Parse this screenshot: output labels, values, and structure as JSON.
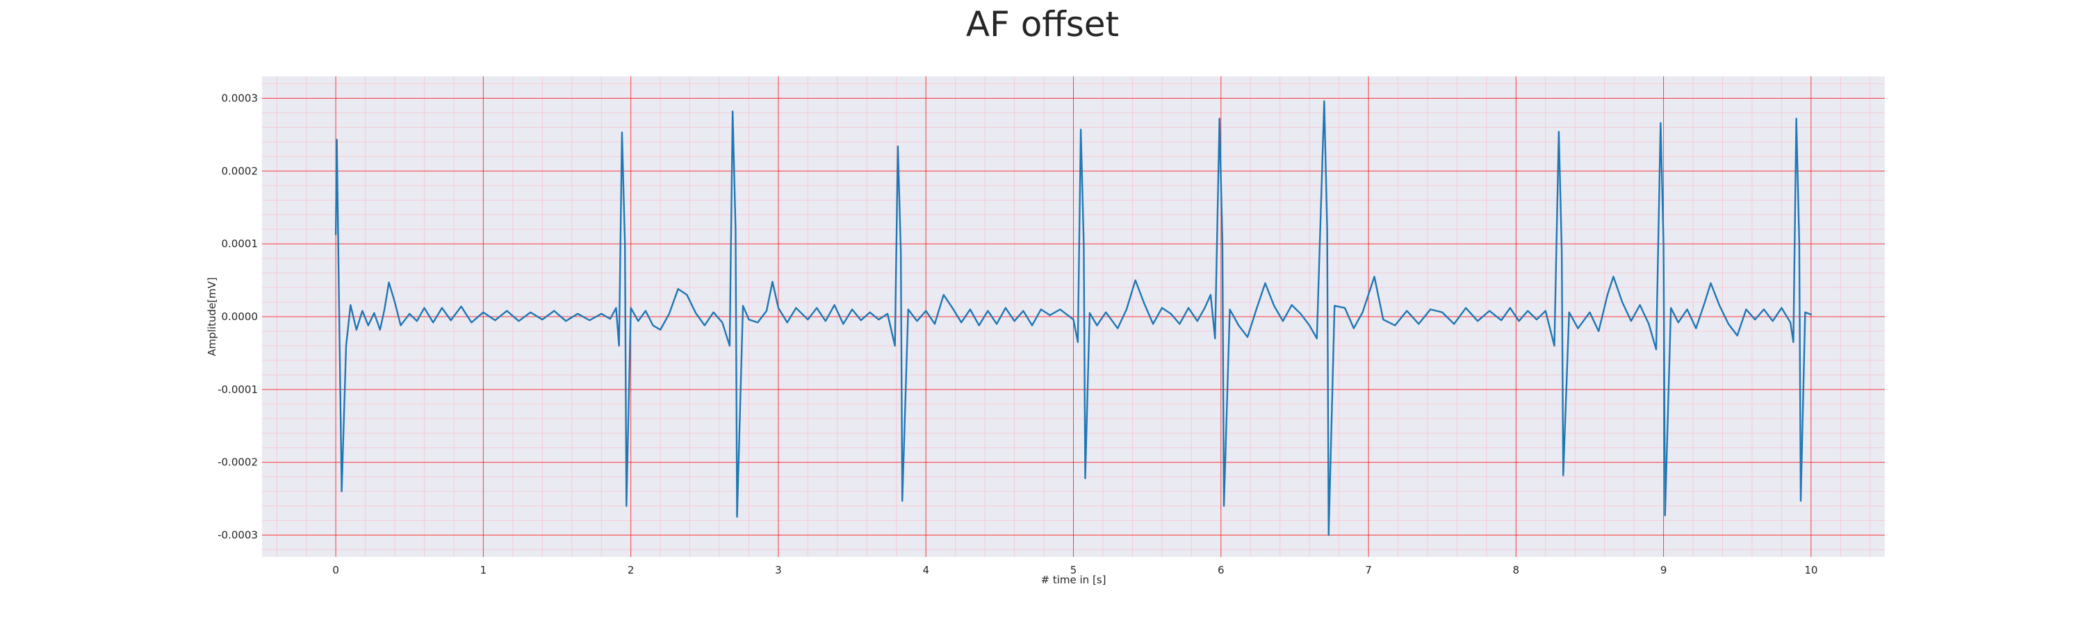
{
  "chart_data": {
    "type": "line",
    "title": "AF offset",
    "xlabel": "# time in [s]",
    "ylabel": "Amplitude[mV]",
    "xlim": [
      -0.5,
      10.5
    ],
    "ylim": [
      -0.00033,
      0.00033
    ],
    "xticks": [
      0,
      1,
      2,
      3,
      4,
      5,
      6,
      7,
      8,
      9,
      10
    ],
    "xtick_labels": [
      "0",
      "1",
      "2",
      "3",
      "4",
      "5",
      "6",
      "7",
      "8",
      "9",
      "10"
    ],
    "yticks": [
      0.0003,
      0.0002,
      0.0001,
      0.0,
      -0.0001,
      -0.0002,
      -0.0003
    ],
    "ytick_labels": [
      "0.0003",
      "0.0002",
      "0.0001",
      "0.0000",
      "-0.0001",
      "-0.0002",
      "-0.0003"
    ],
    "grid": true,
    "colors": {
      "line": "#1f77b4",
      "plot_background": "#eaeaf2",
      "major_grid": "#ff0000",
      "minor_grid": "#ffb6c1"
    },
    "series": [
      {
        "points": [
          [
            0.0,
            0.000113
          ],
          [
            0.007,
            0.000243
          ],
          [
            0.02,
            5e-05
          ],
          [
            0.04,
            -0.00024
          ],
          [
            0.07,
            -4e-05
          ],
          [
            0.1,
            1.6e-05
          ],
          [
            0.14,
            -1.8e-05
          ],
          [
            0.18,
            8e-06
          ],
          [
            0.22,
            -1.2e-05
          ],
          [
            0.26,
            5e-06
          ],
          [
            0.3,
            -1.8e-05
          ],
          [
            0.33,
            1e-05
          ],
          [
            0.36,
            4.7e-05
          ],
          [
            0.4,
            2e-05
          ],
          [
            0.44,
            -1.2e-05
          ],
          [
            0.5,
            4e-06
          ],
          [
            0.55,
            -6e-06
          ],
          [
            0.6,
            1.2e-05
          ],
          [
            0.66,
            -8e-06
          ],
          [
            0.72,
            1.2e-05
          ],
          [
            0.78,
            -5e-06
          ],
          [
            0.85,
            1.4e-05
          ],
          [
            0.92,
            -8e-06
          ],
          [
            1.0,
            6e-06
          ],
          [
            1.08,
            -5e-06
          ],
          [
            1.16,
            8e-06
          ],
          [
            1.24,
            -6e-06
          ],
          [
            1.32,
            6e-06
          ],
          [
            1.4,
            -4e-06
          ],
          [
            1.48,
            8e-06
          ],
          [
            1.56,
            -6e-06
          ],
          [
            1.64,
            4e-06
          ],
          [
            1.72,
            -5e-06
          ],
          [
            1.8,
            4e-06
          ],
          [
            1.86,
            -3e-06
          ],
          [
            1.9,
            1.2e-05
          ],
          [
            1.92,
            -4e-05
          ],
          [
            1.94,
            0.000253
          ],
          [
            1.96,
            0.0001
          ],
          [
            1.97,
            -0.00026
          ],
          [
            2.0,
            1.2e-05
          ],
          [
            2.05,
            -6e-06
          ],
          [
            2.1,
            8e-06
          ],
          [
            2.15,
            -1.2e-05
          ],
          [
            2.2,
            -1.8e-05
          ],
          [
            2.26,
            4e-06
          ],
          [
            2.32,
            3.8e-05
          ],
          [
            2.38,
            3e-05
          ],
          [
            2.44,
            5e-06
          ],
          [
            2.5,
            -1.2e-05
          ],
          [
            2.56,
            6e-06
          ],
          [
            2.62,
            -8e-06
          ],
          [
            2.67,
            -4e-05
          ],
          [
            2.69,
            0.000282
          ],
          [
            2.71,
            0.00012
          ],
          [
            2.72,
            -0.000275
          ],
          [
            2.76,
            1.5e-05
          ],
          [
            2.8,
            -4e-06
          ],
          [
            2.86,
            -8e-06
          ],
          [
            2.92,
            8e-06
          ],
          [
            2.96,
            4.8e-05
          ],
          [
            3.0,
            1.2e-05
          ],
          [
            3.06,
            -8e-06
          ],
          [
            3.12,
            1.2e-05
          ],
          [
            3.2,
            -4e-06
          ],
          [
            3.26,
            1.2e-05
          ],
          [
            3.32,
            -6e-06
          ],
          [
            3.38,
            1.6e-05
          ],
          [
            3.44,
            -1e-05
          ],
          [
            3.5,
            1e-05
          ],
          [
            3.56,
            -5e-06
          ],
          [
            3.62,
            6e-06
          ],
          [
            3.68,
            -4e-06
          ],
          [
            3.74,
            4e-06
          ],
          [
            3.79,
            -4e-05
          ],
          [
            3.81,
            0.000234
          ],
          [
            3.83,
            9e-05
          ],
          [
            3.84,
            -0.000253
          ],
          [
            3.88,
            1e-05
          ],
          [
            3.94,
            -6e-06
          ],
          [
            4.0,
            8e-06
          ],
          [
            4.06,
            -1e-05
          ],
          [
            4.12,
            3e-05
          ],
          [
            4.18,
            1.2e-05
          ],
          [
            4.24,
            -8e-06
          ],
          [
            4.3,
            1e-05
          ],
          [
            4.36,
            -1.2e-05
          ],
          [
            4.42,
            8e-06
          ],
          [
            4.48,
            -1e-05
          ],
          [
            4.54,
            1.2e-05
          ],
          [
            4.6,
            -6e-06
          ],
          [
            4.66,
            8e-06
          ],
          [
            4.72,
            -1.2e-05
          ],
          [
            4.78,
            1e-05
          ],
          [
            4.84,
            2e-06
          ],
          [
            4.91,
            1e-05
          ],
          [
            5.0,
            -4e-06
          ],
          [
            5.03,
            -3.5e-05
          ],
          [
            5.05,
            0.000257
          ],
          [
            5.07,
            0.0001
          ],
          [
            5.08,
            -0.000222
          ],
          [
            5.11,
            5e-06
          ],
          [
            5.16,
            -1.2e-05
          ],
          [
            5.22,
            6e-06
          ],
          [
            5.3,
            -1.6e-05
          ],
          [
            5.36,
            1e-05
          ],
          [
            5.42,
            5e-05
          ],
          [
            5.48,
            1.8e-05
          ],
          [
            5.54,
            -1e-05
          ],
          [
            5.6,
            1.2e-05
          ],
          [
            5.66,
            4e-06
          ],
          [
            5.72,
            -1e-05
          ],
          [
            5.78,
            1.2e-05
          ],
          [
            5.84,
            -6e-06
          ],
          [
            5.89,
            1.2e-05
          ],
          [
            5.93,
            3e-05
          ],
          [
            5.96,
            -3e-05
          ],
          [
            5.99,
            0.000272
          ],
          [
            6.01,
            0.0001
          ],
          [
            6.02,
            -0.00026
          ],
          [
            6.06,
            1e-05
          ],
          [
            6.12,
            -1.2e-05
          ],
          [
            6.18,
            -2.8e-05
          ],
          [
            6.24,
            1e-05
          ],
          [
            6.3,
            4.6e-05
          ],
          [
            6.36,
            1.5e-05
          ],
          [
            6.42,
            -6e-06
          ],
          [
            6.48,
            1.6e-05
          ],
          [
            6.54,
            4e-06
          ],
          [
            6.6,
            -1.2e-05
          ],
          [
            6.65,
            -3e-05
          ],
          [
            6.7,
            0.000296
          ],
          [
            6.72,
            0.00012
          ],
          [
            6.73,
            -0.0003
          ],
          [
            6.77,
            1.5e-05
          ],
          [
            6.84,
            1.2e-05
          ],
          [
            6.9,
            -1.6e-05
          ],
          [
            6.96,
            6e-06
          ],
          [
            7.04,
            5.5e-05
          ],
          [
            7.1,
            -4e-06
          ],
          [
            7.18,
            -1.2e-05
          ],
          [
            7.26,
            8e-06
          ],
          [
            7.34,
            -1e-05
          ],
          [
            7.42,
            1e-05
          ],
          [
            7.5,
            6e-06
          ],
          [
            7.58,
            -1e-05
          ],
          [
            7.66,
            1.2e-05
          ],
          [
            7.74,
            -6e-06
          ],
          [
            7.82,
            8e-06
          ],
          [
            7.9,
            -5e-06
          ],
          [
            7.96,
            1.2e-05
          ],
          [
            8.02,
            -6e-06
          ],
          [
            8.08,
            8e-06
          ],
          [
            8.14,
            -4e-06
          ],
          [
            8.2,
            8e-06
          ],
          [
            8.26,
            -4e-05
          ],
          [
            8.29,
            0.000254
          ],
          [
            8.31,
            9e-05
          ],
          [
            8.32,
            -0.000218
          ],
          [
            8.36,
            6e-06
          ],
          [
            8.42,
            -1.6e-05
          ],
          [
            8.5,
            6e-06
          ],
          [
            8.56,
            -2e-05
          ],
          [
            8.62,
            3e-05
          ],
          [
            8.66,
            5.5e-05
          ],
          [
            8.72,
            2e-05
          ],
          [
            8.78,
            -6e-06
          ],
          [
            8.84,
            1.6e-05
          ],
          [
            8.9,
            -1e-05
          ],
          [
            8.95,
            -4.5e-05
          ],
          [
            8.98,
            0.000266
          ],
          [
            9.0,
            0.0001
          ],
          [
            9.01,
            -0.000273
          ],
          [
            9.05,
            1.2e-05
          ],
          [
            9.1,
            -8e-06
          ],
          [
            9.16,
            1e-05
          ],
          [
            9.22,
            -1.6e-05
          ],
          [
            9.28,
            2e-05
          ],
          [
            9.32,
            4.6e-05
          ],
          [
            9.38,
            1.5e-05
          ],
          [
            9.44,
            -1e-05
          ],
          [
            9.5,
            -2.6e-05
          ],
          [
            9.56,
            1e-05
          ],
          [
            9.62,
            -4e-06
          ],
          [
            9.68,
            1e-05
          ],
          [
            9.74,
            -6e-06
          ],
          [
            9.8,
            1.2e-05
          ],
          [
            9.86,
            -8e-06
          ],
          [
            9.88,
            -3.5e-05
          ],
          [
            9.9,
            0.000272
          ],
          [
            9.92,
            0.0001
          ],
          [
            9.93,
            -0.000253
          ],
          [
            9.96,
            6e-06
          ],
          [
            10.0,
            3e-06
          ]
        ]
      }
    ]
  }
}
